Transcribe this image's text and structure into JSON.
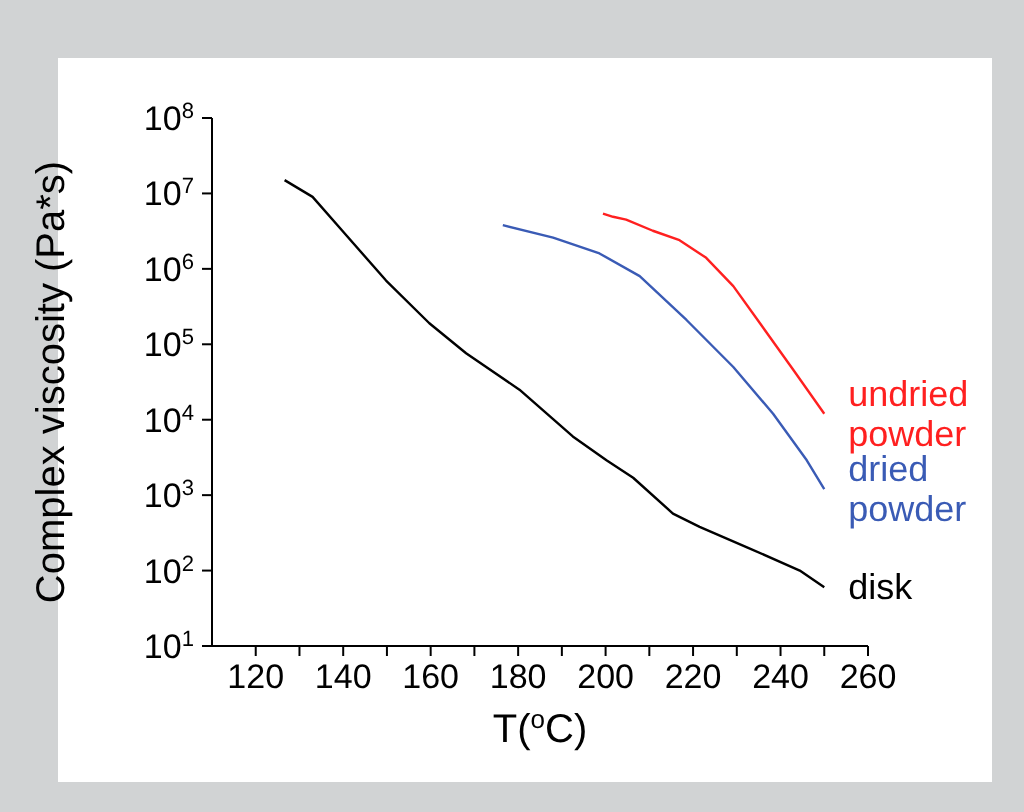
{
  "chart_data": {
    "type": "line",
    "xlabel": "T($^{o}$C)",
    "ylabel": "Complex viscosity (Pa*s)",
    "log": "y",
    "xlim": [
      110,
      260
    ],
    "xticks": [
      120,
      {
        "value": 130,
        "label": null
      },
      140,
      {
        "value": 150,
        "label": null
      },
      160,
      {
        "value": 170,
        "label": null
      },
      180,
      {
        "value": 190,
        "label": null
      },
      200,
      {
        "value": 210,
        "label": null
      },
      220,
      {
        "value": 230,
        "label": null
      },
      240,
      {
        "value": 250,
        "label": null
      },
      260
    ],
    "ylim": [
      10,
      100000000
    ],
    "yticks": [
      {
        "value": 10,
        "label": "10$^{1}$"
      },
      {
        "value": 100,
        "label": "10$^{2}$"
      },
      {
        "value": 1000,
        "label": "10$^{3}$"
      },
      {
        "value": 10000,
        "label": "10$^{4}$"
      },
      {
        "value": 100000,
        "label": "10$^{5}$"
      },
      {
        "value": 1000000,
        "label": "10$^{6}$"
      },
      {
        "value": 10000000,
        "label": "10$^{7}$"
      },
      {
        "value": 100000000,
        "label": "10$^{8}$"
      }
    ],
    "marker": "none",
    "line_style": "solid",
    "series": [
      {
        "name": "disk",
        "color": "#000000",
        "x": [
          126.6,
          133,
          139.8,
          149.8,
          159.7,
          168.1,
          180.3,
          192.5,
          200.2,
          206.3,
          215.4,
          221.5,
          232.2,
          244.4,
          250
        ],
        "values": [
          15000000,
          9000000,
          3200000,
          700000,
          190000,
          76000,
          25000,
          6000,
          2900,
          1700,
          570,
          380,
          205,
          100,
          60
        ]
      },
      {
        "name": "dried powder",
        "color": "#3a5bb5",
        "x": [
          176.5,
          188,
          198.6,
          207.8,
          218.5,
          229.2,
          238.3,
          246,
          250
        ],
        "values": [
          3800000,
          2600000,
          1600000,
          800000,
          210000,
          50000,
          12000,
          2900,
          1200
        ]
      },
      {
        "name": "undried powder",
        "color": "#ff2020",
        "x": [
          199.4,
          201.7,
          204.7,
          210.8,
          216.9,
          223,
          229.2,
          235.3,
          242.9,
          250
        ],
        "values": [
          5400000,
          4900000,
          4500000,
          3200000,
          2400000,
          1400000,
          590000,
          190000,
          46000,
          12000
        ]
      }
    ]
  }
}
